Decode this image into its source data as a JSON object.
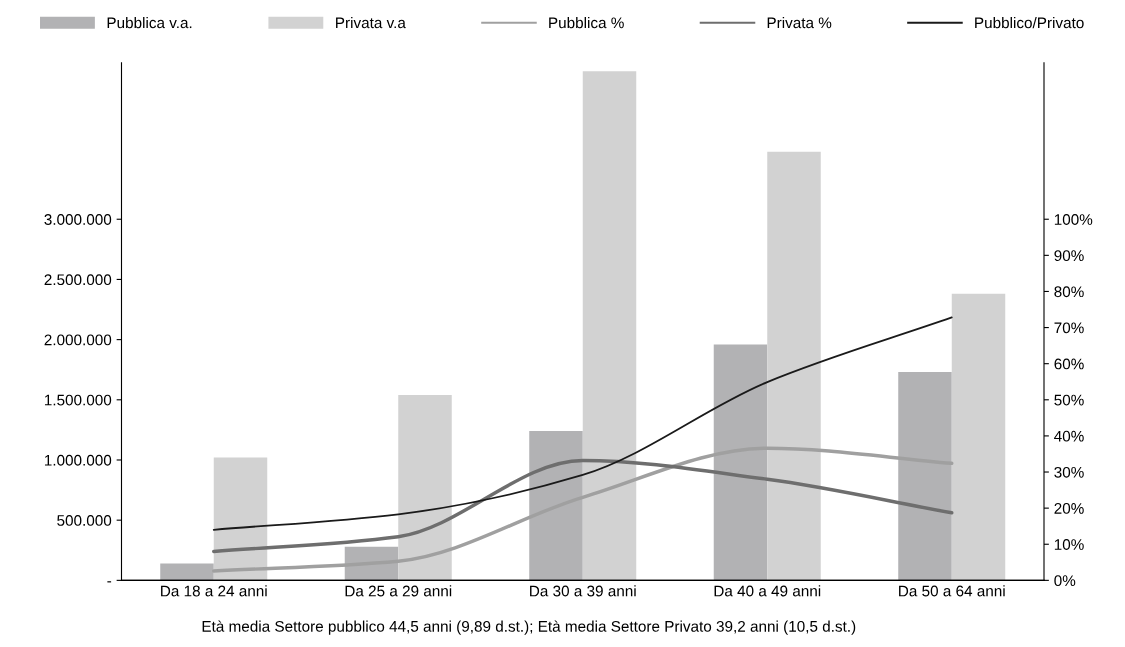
{
  "chart_data": {
    "type": "bar",
    "categories": [
      "Da 18 a 24 anni",
      "Da 25 a 29 anni",
      "Da 30 a 39 anni",
      "Da 40 a 49 anni",
      "Da 50 a 64 anni"
    ],
    "series": [
      {
        "name": "Pubblica v.a.",
        "color": "#b2b2b4",
        "values": [
          140000,
          280000,
          1240000,
          1960000,
          1730000
        ]
      },
      {
        "name": "Privata v.a",
        "color": "#d2d2d2",
        "values": [
          1020000,
          1540000,
          4230000,
          3560000,
          2380000
        ]
      },
      {
        "name": "Pubblica %",
        "type": "line",
        "axis": "y2",
        "color": "#a0a0a0",
        "values": [
          2.6,
          5.3,
          23,
          36.6,
          32.4
        ]
      },
      {
        "name": "Privata %",
        "type": "line",
        "axis": "y2",
        "color": "#6e6e6e",
        "values": [
          8,
          12.1,
          33.2,
          28,
          18.7
        ]
      },
      {
        "name": "Pubblico/Privato",
        "type": "line",
        "axis": "y2",
        "color": "#1a1a1a",
        "values": [
          14,
          18.3,
          29.2,
          54.9,
          72.8
        ]
      }
    ],
    "ylim": [
      0,
      4300000
    ],
    "yticks": [
      {
        "value": 0,
        "label": "-"
      },
      {
        "value": 500000,
        "label": "500.000"
      },
      {
        "value": 1000000,
        "label": "1.000.000"
      },
      {
        "value": 1500000,
        "label": "1.500.000"
      },
      {
        "value": 2000000,
        "label": "2.000.000"
      },
      {
        "value": 2500000,
        "label": "2.500.000"
      },
      {
        "value": 3000000,
        "label": "3.000.000"
      }
    ],
    "y2lim": [
      0,
      143.33
    ],
    "y2ticks": [
      {
        "value": 0,
        "label": "0%"
      },
      {
        "value": 10,
        "label": "10%"
      },
      {
        "value": 20,
        "label": "20%"
      },
      {
        "value": 30,
        "label": "30%"
      },
      {
        "value": 40,
        "label": "40%"
      },
      {
        "value": 50,
        "label": "50%"
      },
      {
        "value": 60,
        "label": "60%"
      },
      {
        "value": 70,
        "label": "70%"
      },
      {
        "value": 80,
        "label": "80%"
      },
      {
        "value": 90,
        "label": "90%"
      },
      {
        "value": 100,
        "label": "100%"
      }
    ],
    "legend": "top",
    "grid": false,
    "annotations": [
      "Età media Settore pubblico 44,5 anni (9,89 d.st.); Età media Settore Privato 39,2 anni (10,5 d.st.)"
    ]
  }
}
